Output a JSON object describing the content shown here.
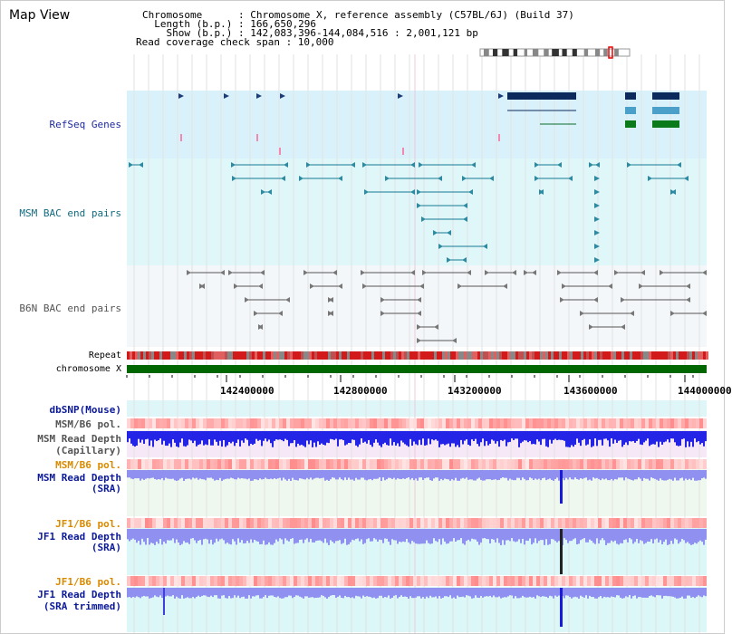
{
  "view": {
    "title": "Map View",
    "info_lines": [
      "Chromosome      : Chromosome X, reference assembly (C57BL/6J) (Build 37)",
      "  Length (b.p.) : 166,650,296",
      "    Show (b.p.) : 142,083,396-144,084,516 : 2,001,121 bp",
      "Read coverage check span : 10,000"
    ]
  },
  "tracks": {
    "refseq": "RefSeq Genes",
    "msm_bac": "MSM BAC end pairs",
    "b6n_bac": "B6N BAC end pairs",
    "repeat": "Repeat",
    "chromosome": "chromosome X",
    "dbsnp": "dbSNP(Mouse)",
    "msm_b6_pol_1": "MSM/B6 pol.",
    "msm_depth_cap_1": "MSM Read Depth",
    "msm_depth_cap_2": "(Capillary)",
    "msm_b6_pol_2": "MSM/B6 pol.",
    "msm_depth_sra_1": "MSM Read Depth",
    "msm_depth_sra_2": "(SRA)",
    "jf1_b6_pol_1": "JF1/B6 pol.",
    "jf1_depth_sra_1": "JF1 Read Depth",
    "jf1_depth_sra_2": "(SRA)",
    "jf1_b6_pol_2": "JF1/B6 pol.",
    "jf1_depth_trim_1": "JF1 Read Depth",
    "jf1_depth_trim_2": "(SRA trimmed)"
  },
  "axis": {
    "ticks": [
      "142400000",
      "142800000",
      "143200000",
      "143600000",
      "144000000"
    ]
  },
  "colors": {
    "refseq_bg": "#d9f1fb",
    "msm_bg": "#dff7f9",
    "b6n_bg": "#f4f7f9",
    "chromosome": "#006600",
    "depth_blue": "#2424e6",
    "depth_light": "#9090f0",
    "pol_red": "#f04040"
  }
}
